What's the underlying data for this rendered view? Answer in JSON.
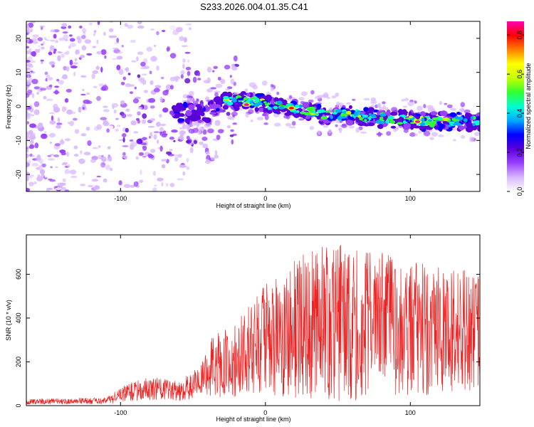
{
  "figure": {
    "title": "S233.2026.004.01.35.C41"
  },
  "chart_data": [
    {
      "id": "spectrogram",
      "type": "heatmap",
      "xlabel": "Height of straight line (km)",
      "ylabel": "Frequency (Hz)",
      "xlim": [
        -165,
        148
      ],
      "ylim": [
        -25,
        25
      ],
      "xticks": [
        -100,
        0,
        100
      ],
      "yticks": [
        -20,
        -10,
        0,
        10,
        20
      ],
      "colorbar": {
        "label": "Normalized spectral amplitude",
        "range": [
          0.0,
          0.87
        ],
        "ticks": [
          0.0,
          0.2,
          0.4,
          0.6,
          0.8
        ],
        "tick_labels": [
          "0.0",
          "0.2",
          "0.4",
          "0.6",
          "0.8"
        ],
        "colormap": [
          "#ffffff",
          "#d8b8ff",
          "#9a40ff",
          "#5a00d8",
          "#0000ff",
          "#00aaff",
          "#00ffd0",
          "#30ff30",
          "#c8ff00",
          "#ffff00",
          "#ff8000",
          "#ff0000",
          "#ff00b0"
        ]
      },
      "ridge_frequency_hz": [
        {
          "x": -65,
          "y": -2.0
        },
        {
          "x": -40,
          "y": -2.0
        },
        {
          "x": -27,
          "y": 2.0
        },
        {
          "x": -10,
          "y": 1.5
        },
        {
          "x": 5,
          "y": 0.5
        },
        {
          "x": 20,
          "y": -0.5
        },
        {
          "x": 30,
          "y": -1.5
        },
        {
          "x": 40,
          "y": -2.5
        },
        {
          "x": 60,
          "y": -2.5
        },
        {
          "x": 80,
          "y": -3.5
        },
        {
          "x": 100,
          "y": -4.0
        },
        {
          "x": 120,
          "y": -4.5
        },
        {
          "x": 148,
          "y": -4.5
        }
      ],
      "peak_points": [
        {
          "x": -13,
          "y": 0.5,
          "v": 0.85
        },
        {
          "x": 18,
          "y": -0.5,
          "v": 0.8
        },
        {
          "x": 105,
          "y": -4.5,
          "v": 0.85
        }
      ]
    },
    {
      "id": "snr",
      "type": "line",
      "xlabel": "Height of straight line (km)",
      "ylabel": "SNR (10 * v/v)",
      "xlim": [
        -165,
        148
      ],
      "ylim": [
        0,
        780
      ],
      "xticks": [
        -100,
        0,
        100
      ],
      "yticks": [
        0,
        200,
        400,
        600
      ],
      "color": "#ee2222",
      "envelope": [
        {
          "x": -165,
          "mean": 18,
          "amp": 12
        },
        {
          "x": -110,
          "mean": 22,
          "amp": 15
        },
        {
          "x": -95,
          "mean": 60,
          "amp": 40
        },
        {
          "x": -80,
          "mean": 80,
          "amp": 55
        },
        {
          "x": -60,
          "mean": 65,
          "amp": 45
        },
        {
          "x": -45,
          "mean": 110,
          "amp": 70
        },
        {
          "x": -35,
          "mean": 190,
          "amp": 150
        },
        {
          "x": -25,
          "mean": 190,
          "amp": 160
        },
        {
          "x": -15,
          "mean": 240,
          "amp": 190
        },
        {
          "x": -5,
          "mean": 290,
          "amp": 250
        },
        {
          "x": 10,
          "mean": 320,
          "amp": 280
        },
        {
          "x": 30,
          "mean": 370,
          "amp": 350
        },
        {
          "x": 60,
          "mean": 380,
          "amp": 360
        },
        {
          "x": 90,
          "mean": 360,
          "amp": 320
        },
        {
          "x": 120,
          "mean": 350,
          "amp": 300
        },
        {
          "x": 148,
          "mean": 330,
          "amp": 270
        }
      ]
    }
  ]
}
